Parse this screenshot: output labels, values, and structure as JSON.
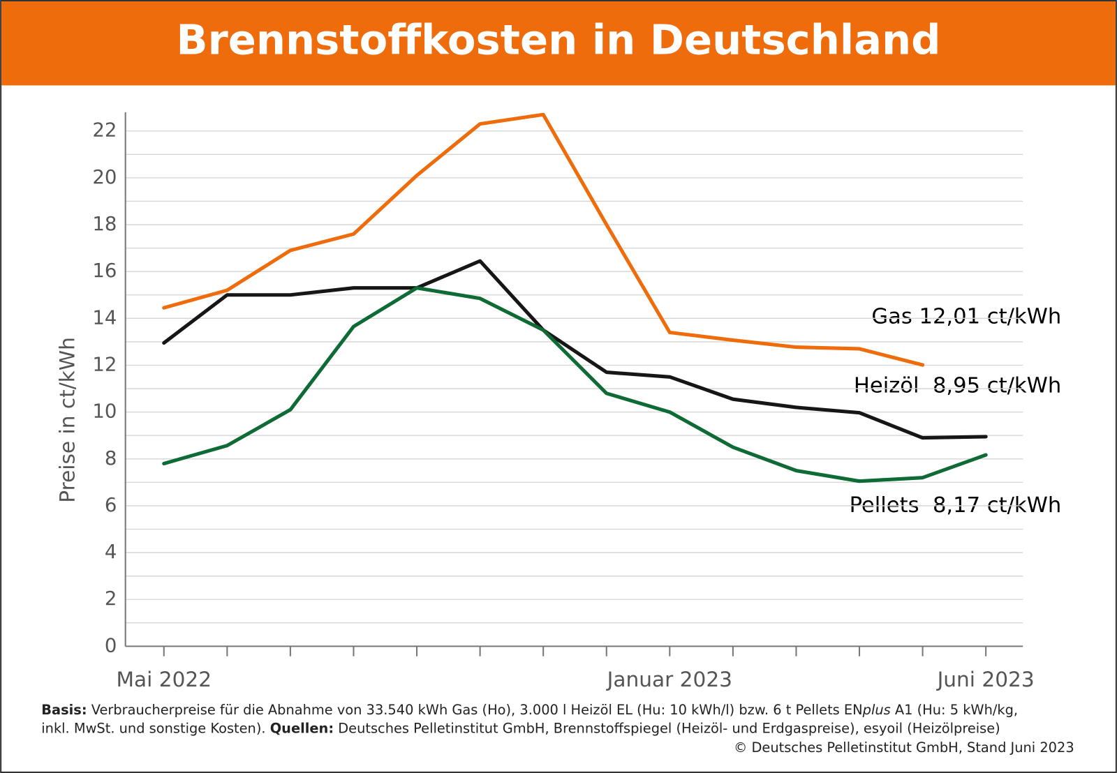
{
  "chart_data": {
    "type": "line",
    "title": "Brennstoffkosten in Deutschland",
    "y_label": "Preise in ct/kWh",
    "categories": [
      "Mai 2022",
      null,
      null,
      null,
      null,
      null,
      null,
      null,
      "Januar 2023",
      null,
      null,
      null,
      null,
      "Juni 2023"
    ],
    "series": [
      {
        "name": "Gas",
        "color": "#ee6c0c",
        "values": [
          14.45,
          15.2,
          16.9,
          17.6,
          20.1,
          22.3,
          22.7,
          18.0,
          13.4,
          13.07,
          12.77,
          12.7,
          12.01,
          null
        ]
      },
      {
        "name": "Heizöl",
        "color": "#161616",
        "values": [
          12.95,
          15.0,
          15.0,
          15.3,
          15.3,
          16.45,
          13.5,
          11.7,
          11.5,
          10.55,
          10.2,
          9.97,
          8.9,
          8.95
        ]
      },
      {
        "name": "Pellets",
        "color": "#0e6b35",
        "values": [
          7.8,
          8.57,
          10.1,
          13.65,
          15.3,
          14.85,
          13.5,
          10.8,
          10.0,
          8.5,
          7.5,
          7.05,
          7.2,
          8.17
        ]
      }
    ],
    "annotations": [
      "Gas 12,01 ct/kWh",
      "Heizöl  8,95 ct/kWh",
      "Pellets  8,17 ct/kWh"
    ],
    "ylim": [
      0,
      22.8
    ],
    "yticks": [
      0,
      2,
      4,
      6,
      8,
      10,
      12,
      14,
      16,
      18,
      20,
      22
    ],
    "minor_yticks": [
      1,
      3,
      5,
      7,
      9,
      11,
      13,
      15,
      17,
      19,
      21
    ],
    "grid": true,
    "footnote": {
      "basis_label": "Basis:",
      "basis_text": " Verbraucherpreise für die Abnahme von 33.540 kWh Gas (Ho), 3.000 l Heizöl EL (Hu: 10 kWh/l) bzw. 6 t Pellets EN",
      "plus": "plus",
      "basis_text_end": " A1 (Hu: 5 kWh/kg,",
      "line2_start": "inkl. MwSt. und sonstige Kosten). ",
      "sources_label": "Quellen:",
      "sources_text": " Deutsches Pelletinstitut GmbH, Brennstoffspiegel (Heizöl- und Erdgaspreise), esyoil (Heizölpreise)",
      "copyright": "© Deutsches Pelletinstitut GmbH, Stand Juni 2023"
    }
  }
}
